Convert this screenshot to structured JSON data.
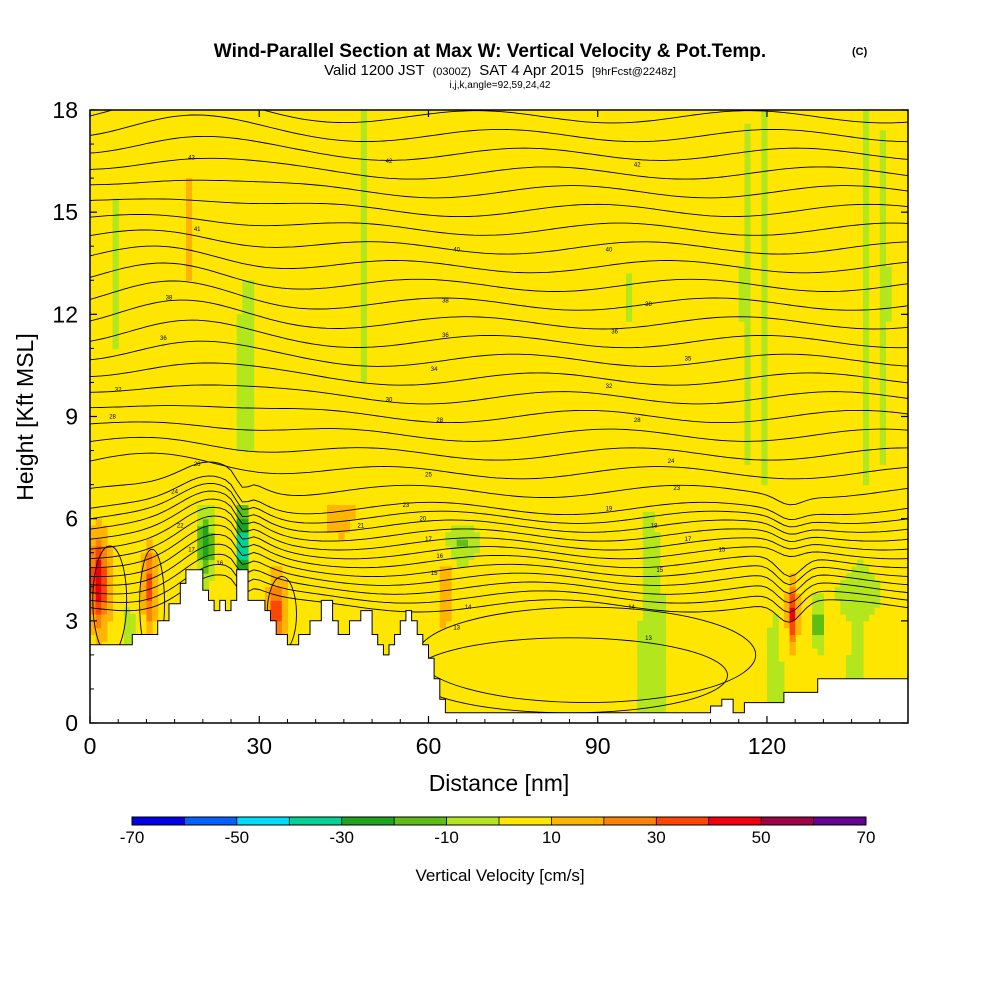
{
  "chart_data": {
    "type": "heatmap",
    "title": "Wind-Parallel Section at Max W: Vertical Velocity & Pot.Temp.",
    "title_mark": "(C)",
    "subtitle_parts": [
      "Valid 1200 JST",
      "(0300Z)",
      "SAT 4 Apr 2015",
      "[9hrFcst@2248z]"
    ],
    "info_line": "i,j,k,angle=92,59,24,42",
    "xlabel": "Distance [nm]",
    "ylabel": "Height [Kft MSL]",
    "xlim": [
      0,
      145
    ],
    "ylim": [
      0,
      18
    ],
    "xticks": [
      0,
      30,
      60,
      90,
      120
    ],
    "yticks": [
      0,
      3,
      6,
      9,
      12,
      15,
      18
    ],
    "colorbar": {
      "label": "Vertical Velocity [cm/s]",
      "bounds": [
        -70,
        -60,
        -50,
        -40,
        -30,
        -20,
        -10,
        0,
        10,
        20,
        30,
        40,
        50,
        60,
        70
      ],
      "tick_labels": [
        "-70",
        "-50",
        "-30",
        "-10",
        "10",
        "30",
        "50",
        "70"
      ],
      "colors": [
        "#0000e6",
        "#0063ff",
        "#00dcff",
        "#00d296",
        "#1ea51e",
        "#5fbe14",
        "#b4e61e",
        "#ffe600",
        "#ffb400",
        "#ff8200",
        "#ff4600",
        "#f0000f",
        "#a00046",
        "#640096"
      ]
    },
    "terrain": [
      [
        0,
        2.3
      ],
      [
        7.5,
        2.3
      ],
      [
        7.5,
        2.6
      ],
      [
        12,
        2.6
      ],
      [
        12,
        3
      ],
      [
        14,
        3
      ],
      [
        14,
        3.5
      ],
      [
        16,
        3.5
      ],
      [
        16,
        4.1
      ],
      [
        17,
        4.1
      ],
      [
        17,
        4.5
      ],
      [
        20,
        4.5
      ],
      [
        20,
        3.9
      ],
      [
        21,
        3.9
      ],
      [
        21,
        3.6
      ],
      [
        22,
        3.6
      ],
      [
        22,
        3.3
      ],
      [
        23,
        3.3
      ],
      [
        23,
        3.6
      ],
      [
        24,
        3.6
      ],
      [
        24,
        3.3
      ],
      [
        25,
        3.3
      ],
      [
        25,
        3.6
      ],
      [
        26,
        3.6
      ],
      [
        26,
        4.5
      ],
      [
        28,
        4.5
      ],
      [
        28,
        3.6
      ],
      [
        31,
        3.6
      ],
      [
        31,
        3.3
      ],
      [
        32,
        3.3
      ],
      [
        32,
        3
      ],
      [
        33,
        3
      ],
      [
        33,
        2.6
      ],
      [
        35,
        2.6
      ],
      [
        35,
        2.3
      ],
      [
        37,
        2.3
      ],
      [
        37,
        2.6
      ],
      [
        39,
        2.6
      ],
      [
        39,
        3
      ],
      [
        41,
        3
      ],
      [
        41,
        3.6
      ],
      [
        43,
        3.6
      ],
      [
        43,
        3
      ],
      [
        44,
        3
      ],
      [
        44,
        2.6
      ],
      [
        46,
        2.6
      ],
      [
        46,
        3
      ],
      [
        48,
        3
      ],
      [
        48,
        3.3
      ],
      [
        50,
        3.3
      ],
      [
        50,
        2.6
      ],
      [
        51,
        2.6
      ],
      [
        51,
        2.3
      ],
      [
        52,
        2.3
      ],
      [
        52,
        2
      ],
      [
        53,
        2
      ],
      [
        53,
        2.3
      ],
      [
        54,
        2.3
      ],
      [
        54,
        2.6
      ],
      [
        55,
        2.6
      ],
      [
        55,
        3
      ],
      [
        56,
        3
      ],
      [
        56,
        3.3
      ],
      [
        57,
        3.3
      ],
      [
        57,
        3
      ],
      [
        58,
        3
      ],
      [
        58,
        2.6
      ],
      [
        59,
        2.6
      ],
      [
        59,
        2.3
      ],
      [
        60,
        2.3
      ],
      [
        60,
        1.9
      ],
      [
        61,
        1.9
      ],
      [
        61,
        1.3
      ],
      [
        62,
        1.3
      ],
      [
        62,
        0.7
      ],
      [
        63,
        0.7
      ],
      [
        63,
        0.3
      ],
      [
        110,
        0.3
      ],
      [
        110,
        0.5
      ],
      [
        112,
        0.5
      ],
      [
        112,
        0.7
      ],
      [
        114,
        0.7
      ],
      [
        114,
        0.3
      ],
      [
        116,
        0.3
      ],
      [
        116,
        0.6
      ],
      [
        123,
        0.6
      ],
      [
        123,
        0.9
      ],
      [
        129,
        0.9
      ],
      [
        129,
        1.3
      ],
      [
        133,
        1.3
      ],
      [
        133,
        1.3
      ],
      [
        145,
        1.3
      ]
    ],
    "theta_contour_labels": [
      {
        "x": 18,
        "y": 16.6,
        "text": "43"
      },
      {
        "x": 53,
        "y": 16.5,
        "text": "42"
      },
      {
        "x": 97,
        "y": 16.4,
        "text": "42"
      },
      {
        "x": 19,
        "y": 14.5,
        "text": "41"
      },
      {
        "x": 65,
        "y": 13.9,
        "text": "40"
      },
      {
        "x": 92,
        "y": 13.9,
        "text": "40"
      },
      {
        "x": 14,
        "y": 12.5,
        "text": "38"
      },
      {
        "x": 63,
        "y": 12.4,
        "text": "38"
      },
      {
        "x": 99,
        "y": 12.3,
        "text": "38"
      },
      {
        "x": 13,
        "y": 11.3,
        "text": "36"
      },
      {
        "x": 63,
        "y": 11.4,
        "text": "36"
      },
      {
        "x": 93,
        "y": 11.5,
        "text": "36"
      },
      {
        "x": 61,
        "y": 10.4,
        "text": "34"
      },
      {
        "x": 106,
        "y": 10.7,
        "text": "35"
      },
      {
        "x": 5,
        "y": 9.8,
        "text": "32"
      },
      {
        "x": 92,
        "y": 9.9,
        "text": "32"
      },
      {
        "x": 53,
        "y": 9.5,
        "text": "30"
      },
      {
        "x": 4,
        "y": 9,
        "text": "28"
      },
      {
        "x": 62,
        "y": 8.9,
        "text": "28"
      },
      {
        "x": 97,
        "y": 8.9,
        "text": "28"
      },
      {
        "x": 19,
        "y": 7.6,
        "text": "26"
      },
      {
        "x": 60,
        "y": 7.3,
        "text": "25"
      },
      {
        "x": 103,
        "y": 7.7,
        "text": "24"
      },
      {
        "x": 15,
        "y": 6.8,
        "text": "24"
      },
      {
        "x": 56,
        "y": 6.4,
        "text": "23"
      },
      {
        "x": 104,
        "y": 6.9,
        "text": "23"
      },
      {
        "x": 16,
        "y": 5.8,
        "text": "22"
      },
      {
        "x": 48,
        "y": 5.8,
        "text": "21"
      },
      {
        "x": 59,
        "y": 6,
        "text": "20"
      },
      {
        "x": 92,
        "y": 6.3,
        "text": "19"
      },
      {
        "x": 100,
        "y": 5.8,
        "text": "18"
      },
      {
        "x": 18,
        "y": 5.1,
        "text": "17"
      },
      {
        "x": 60,
        "y": 5.4,
        "text": "17"
      },
      {
        "x": 106,
        "y": 5.4,
        "text": "17"
      },
      {
        "x": 23,
        "y": 4.7,
        "text": "16"
      },
      {
        "x": 62,
        "y": 4.9,
        "text": "16"
      },
      {
        "x": 112,
        "y": 5.1,
        "text": "15"
      },
      {
        "x": 61,
        "y": 4.4,
        "text": "15"
      },
      {
        "x": 101,
        "y": 4.5,
        "text": "15"
      },
      {
        "x": 67,
        "y": 3.4,
        "text": "14"
      },
      {
        "x": 96,
        "y": 3.4,
        "text": "14"
      },
      {
        "x": 65,
        "y": 2.8,
        "text": "13"
      },
      {
        "x": 99,
        "y": 2.5,
        "text": "13"
      }
    ]
  }
}
